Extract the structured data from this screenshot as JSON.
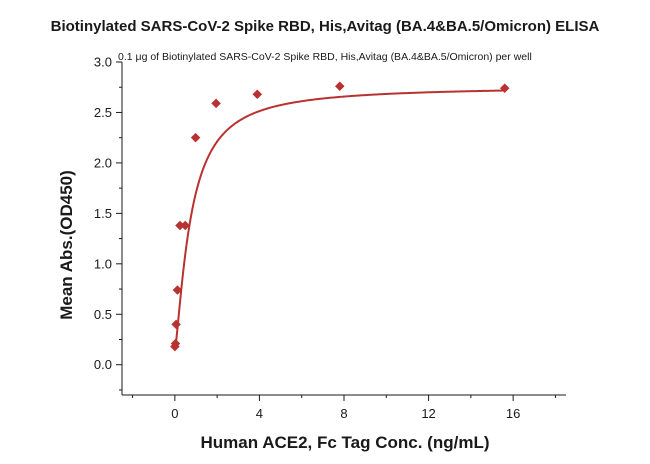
{
  "chart_data": {
    "type": "scatter",
    "title": "Biotinylated SARS-CoV-2 Spike RBD, His,Avitag (BA.4&BA.5/Omicron) ELISA",
    "subtitle": "0.1 μg of Biotinylated SARS-CoV-2 Spike RBD, His,Avitag (BA.4&BA.5/Omicron) per well",
    "xlabel": "Human ACE2, Fc Tag Conc. (ng/mL)",
    "ylabel": "Mean Abs.(OD450)",
    "xlim": [
      -2.5,
      18.5
    ],
    "ylim": [
      -0.3,
      3.0
    ],
    "xticks": [
      0,
      4,
      8,
      12,
      16
    ],
    "yticks": [
      0.0,
      0.5,
      1.0,
      1.5,
      2.0,
      2.5,
      3.0
    ],
    "xtick_labels": [
      "0",
      "4",
      "8",
      "12",
      "16"
    ],
    "ytick_labels": [
      "0.0",
      "0.5",
      "1.0",
      "1.5",
      "2.0",
      "2.5",
      "3.0"
    ],
    "grid": false,
    "color": "#b83232",
    "series": [
      {
        "marker": "diamond",
        "x": [
          0.0,
          0.03,
          0.06,
          0.12,
          0.24,
          0.49,
          0.98,
          1.95,
          3.9,
          7.8,
          15.6
        ],
        "y": [
          0.18,
          0.21,
          0.4,
          0.74,
          1.38,
          1.38,
          2.25,
          2.59,
          2.68,
          2.76,
          2.74
        ]
      }
    ]
  }
}
